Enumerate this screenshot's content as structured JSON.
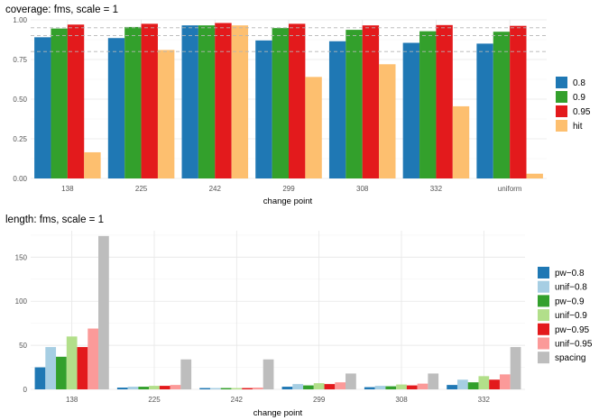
{
  "chart_data": [
    {
      "type": "bar",
      "title": "coverage: fms, scale = 1",
      "xlabel": "change point",
      "ylabel": "",
      "categories": [
        "138",
        "225",
        "242",
        "299",
        "308",
        "332",
        "uniform"
      ],
      "ylim": [
        0,
        1.0
      ],
      "yticks": [
        "0.00",
        "0.25",
        "0.50",
        "0.75",
        "1.00"
      ],
      "reference_lines": [
        0.8,
        0.9,
        0.95
      ],
      "grid": true,
      "legend_position": "right",
      "series": [
        {
          "name": "0.8",
          "color": "#1f78b4",
          "values": [
            0.89,
            0.885,
            0.965,
            0.87,
            0.865,
            0.855,
            0.85
          ]
        },
        {
          "name": "0.9",
          "color": "#33a02c",
          "values": [
            0.945,
            0.955,
            0.965,
            0.948,
            0.937,
            0.928,
            0.925
          ]
        },
        {
          "name": "0.95",
          "color": "#e31a1c",
          "values": [
            0.97,
            0.975,
            0.98,
            0.975,
            0.965,
            0.967,
            0.962
          ]
        },
        {
          "name": "hit",
          "color": "#fdbf6f",
          "values": [
            0.165,
            0.81,
            0.965,
            0.64,
            0.72,
            0.455,
            0.03
          ]
        }
      ]
    },
    {
      "type": "bar",
      "title": "length: fms, scale = 1",
      "xlabel": "change point",
      "ylabel": "",
      "categories": [
        "138",
        "225",
        "242",
        "299",
        "308",
        "332"
      ],
      "ylim": [
        0,
        180
      ],
      "yticks": [
        "0",
        "50",
        "100",
        "150"
      ],
      "grid": true,
      "legend_position": "right",
      "series": [
        {
          "name": "pw−0.8",
          "color": "#1f78b4",
          "values": [
            25,
            2,
            1.5,
            3,
            2.5,
            5
          ]
        },
        {
          "name": "unif−0.8",
          "color": "#a6cee3",
          "values": [
            48,
            3,
            1.5,
            6,
            4,
            11
          ]
        },
        {
          "name": "pw−0.9",
          "color": "#33a02c",
          "values": [
            37,
            3,
            1.5,
            4.5,
            3.5,
            8
          ]
        },
        {
          "name": "unif−0.9",
          "color": "#b2df8a",
          "values": [
            60,
            4,
            1.5,
            7,
            5.5,
            15
          ]
        },
        {
          "name": "pw−0.95",
          "color": "#e31a1c",
          "values": [
            48,
            4,
            1.5,
            6,
            4.5,
            11
          ]
        },
        {
          "name": "unif−0.95",
          "color": "#fb9a99",
          "values": [
            69,
            5,
            2,
            8,
            6.5,
            17
          ]
        },
        {
          "name": "spacing",
          "color": "#bdbdbd",
          "values": [
            174,
            34,
            34,
            18,
            18,
            48
          ]
        }
      ]
    }
  ]
}
